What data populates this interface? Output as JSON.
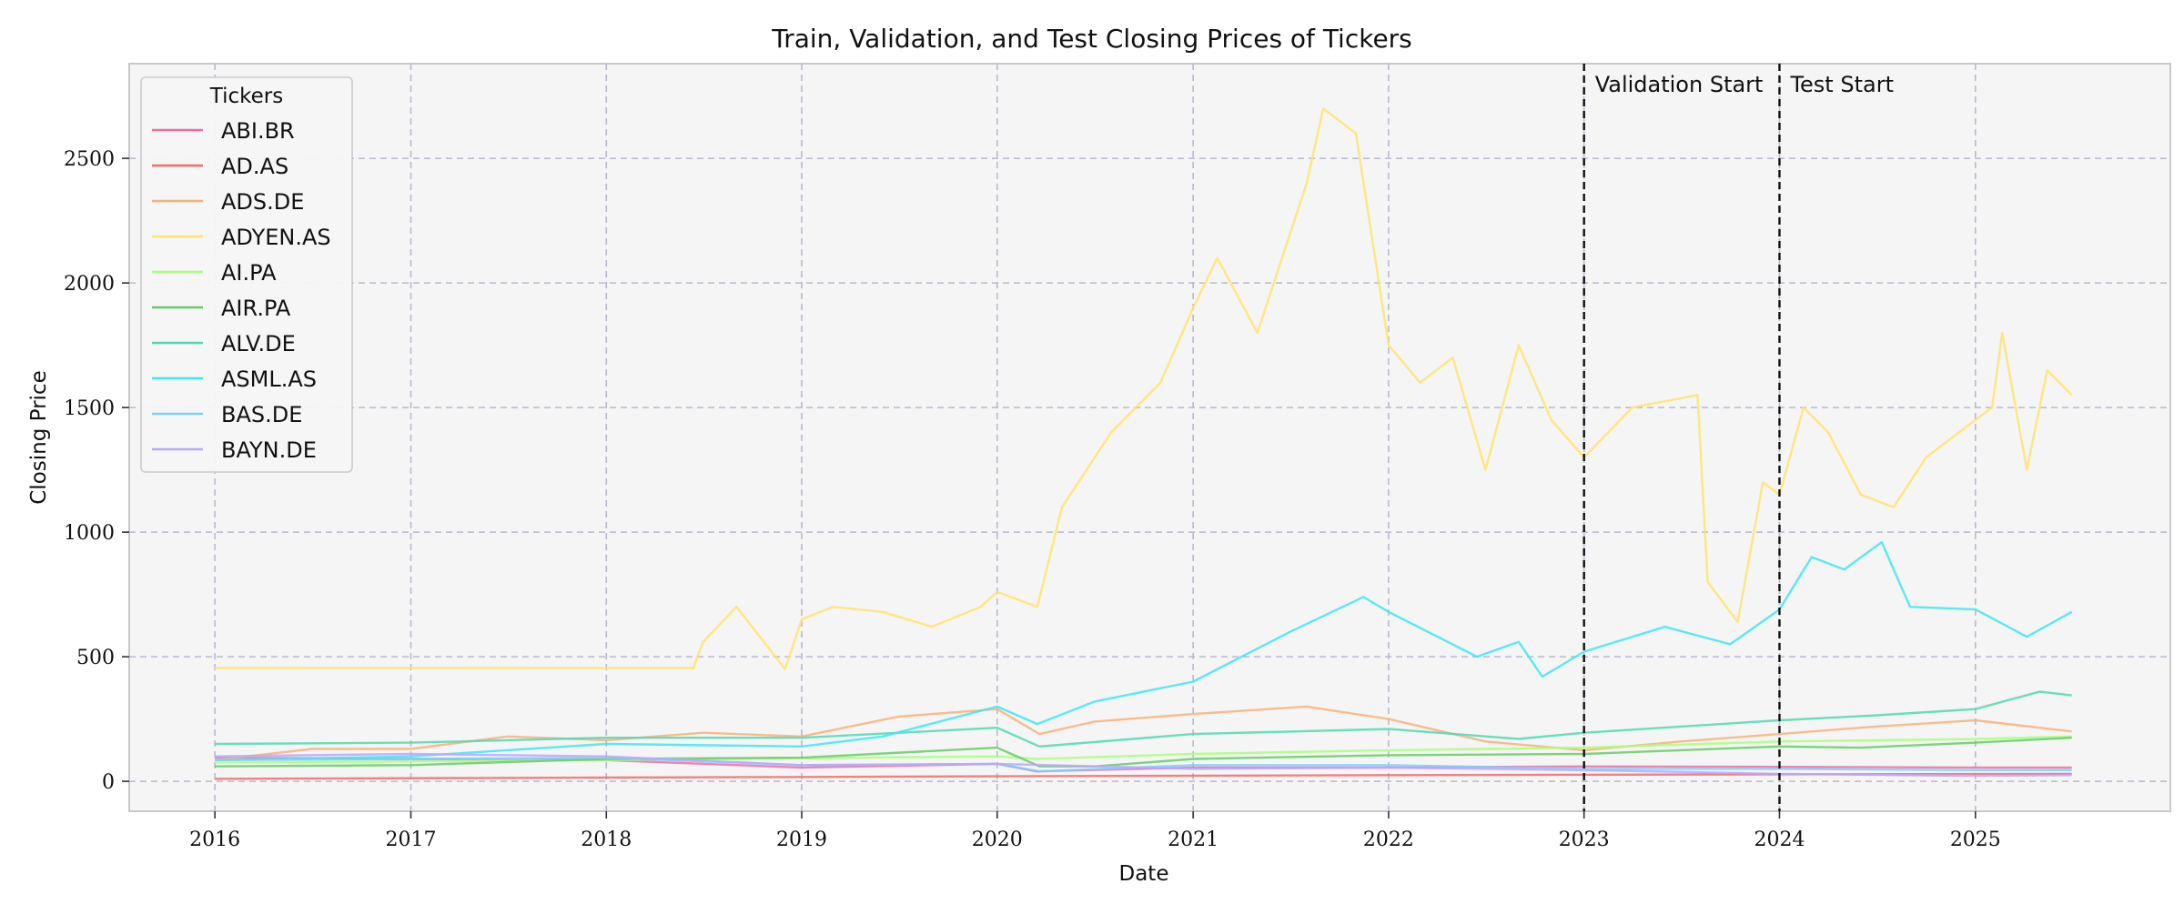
{
  "chart_data": {
    "type": "line",
    "title": "Train, Validation, and Test Closing Prices of Tickers",
    "xlabel": "Date",
    "ylabel": "Closing Price",
    "x_ticks": [
      "2016",
      "2017",
      "2018",
      "2019",
      "2020",
      "2021",
      "2022",
      "2023",
      "2024",
      "2025"
    ],
    "y_ticks": [
      "0",
      "500",
      "1000",
      "1500",
      "2000",
      "2500"
    ],
    "xlim": [
      "2015-07-25",
      "2025-12-31"
    ],
    "ylim": [
      -120,
      2880
    ],
    "grid": true,
    "legend": {
      "title": "Tickers",
      "placement": "top-left"
    },
    "vertical_markers": [
      {
        "label": "Validation Start",
        "date": "2023-01-01"
      },
      {
        "label": "Test Start",
        "date": "2024-01-01"
      }
    ],
    "series": [
      {
        "name": "ABI.BR",
        "color": "#f06fa3",
        "x": [
          "2016-01-01",
          "2017-01-01",
          "2018-01-01",
          "2019-01-01",
          "2020-01-01",
          "2020-03-15",
          "2021-01-01",
          "2022-01-01",
          "2023-01-01",
          "2024-01-01",
          "2025-01-01",
          "2025-06-30"
        ],
        "y": [
          95,
          90,
          85,
          55,
          70,
          40,
          55,
          55,
          60,
          58,
          55,
          55
        ]
      },
      {
        "name": "AD.AS",
        "color": "#f26b6b",
        "x": [
          "2016-01-01",
          "2018-01-01",
          "2020-01-01",
          "2022-01-01",
          "2024-01-01",
          "2025-06-30"
        ],
        "y": [
          10,
          15,
          20,
          25,
          28,
          30
        ]
      },
      {
        "name": "ADS.DE",
        "color": "#f9b07a",
        "x": [
          "2016-01-01",
          "2016-07-01",
          "2017-01-01",
          "2017-07-01",
          "2018-01-01",
          "2018-07-01",
          "2019-01-01",
          "2019-07-01",
          "2020-01-01",
          "2020-03-20",
          "2020-07-01",
          "2021-01-01",
          "2021-08-01",
          "2022-01-01",
          "2022-07-01",
          "2023-01-01",
          "2023-07-01",
          "2024-01-01",
          "2024-07-01",
          "2025-01-01",
          "2025-06-30"
        ],
        "y": [
          85,
          130,
          130,
          180,
          165,
          195,
          180,
          260,
          290,
          190,
          240,
          270,
          300,
          250,
          160,
          125,
          160,
          190,
          220,
          245,
          200
        ]
      },
      {
        "name": "ADYEN.AS",
        "color": "#ffe36b",
        "x": [
          "2016-01-01",
          "2018-06-13",
          "2018-06-20",
          "2018-07-01",
          "2018-09-01",
          "2018-10-15",
          "2018-12-01",
          "2019-01-01",
          "2019-03-01",
          "2019-06-01",
          "2019-09-01",
          "2019-12-01",
          "2020-01-01",
          "2020-03-16",
          "2020-05-01",
          "2020-08-01",
          "2020-11-01",
          "2021-01-01",
          "2021-02-15",
          "2021-05-01",
          "2021-08-01",
          "2021-09-01",
          "2021-11-01",
          "2022-01-01",
          "2022-03-01",
          "2022-05-01",
          "2022-07-01",
          "2022-09-01",
          "2022-11-01",
          "2023-01-01",
          "2023-04-01",
          "2023-08-01",
          "2023-08-20",
          "2023-10-15",
          "2023-12-01",
          "2024-01-01",
          "2024-02-15",
          "2024-04-01",
          "2024-06-01",
          "2024-08-01",
          "2024-10-01",
          "2024-12-01",
          "2025-02-01",
          "2025-02-20",
          "2025-04-07",
          "2025-05-15",
          "2025-06-30"
        ],
        "y": [
          455,
          455,
          500,
          560,
          700,
          580,
          450,
          650,
          700,
          680,
          620,
          700,
          760,
          700,
          1100,
          1400,
          1600,
          1900,
          2100,
          1800,
          2400,
          2700,
          2600,
          1750,
          1600,
          1700,
          1250,
          1750,
          1450,
          1300,
          1500,
          1550,
          800,
          640,
          1200,
          1150,
          1500,
          1400,
          1150,
          1100,
          1300,
          1400,
          1500,
          1800,
          1250,
          1650,
          1550
        ]
      },
      {
        "name": "AI.PA",
        "color": "#a8ff7a",
        "x": [
          "2016-01-01",
          "2018-01-01",
          "2020-01-01",
          "2020-03-16",
          "2021-01-01",
          "2022-01-01",
          "2023-01-01",
          "2024-01-01",
          "2025-01-01",
          "2025-06-30"
        ],
        "y": [
          75,
          85,
          100,
          90,
          110,
          125,
          135,
          160,
          170,
          180
        ]
      },
      {
        "name": "AIR.PA",
        "color": "#66cc66",
        "x": [
          "2016-01-01",
          "2017-01-01",
          "2018-01-01",
          "2019-01-01",
          "2020-01-01",
          "2020-03-20",
          "2020-07-01",
          "2021-01-01",
          "2022-01-01",
          "2023-01-01",
          "2024-01-01",
          "2024-06-01",
          "2025-01-01",
          "2025-06-30"
        ],
        "y": [
          60,
          65,
          90,
          95,
          135,
          60,
          60,
          90,
          105,
          110,
          140,
          135,
          155,
          175
        ]
      },
      {
        "name": "ALV.DE",
        "color": "#4fd9b3",
        "x": [
          "2016-01-01",
          "2017-01-01",
          "2018-01-01",
          "2019-01-01",
          "2020-01-01",
          "2020-03-20",
          "2021-01-01",
          "2022-01-01",
          "2022-09-01",
          "2023-01-01",
          "2024-01-01",
          "2024-07-01",
          "2025-01-01",
          "2025-05-01",
          "2025-06-30"
        ],
        "y": [
          150,
          155,
          175,
          175,
          215,
          140,
          190,
          210,
          170,
          195,
          245,
          265,
          290,
          360,
          345
        ]
      },
      {
        "name": "ASML.AS",
        "color": "#3de6f2",
        "x": [
          "2016-01-01",
          "2017-01-01",
          "2018-01-01",
          "2019-01-01",
          "2019-06-01",
          "2020-01-01",
          "2020-03-16",
          "2020-07-01",
          "2021-01-01",
          "2021-07-01",
          "2021-11-15",
          "2022-01-01",
          "2022-06-15",
          "2022-09-01",
          "2022-10-15",
          "2023-01-01",
          "2023-06-01",
          "2023-10-01",
          "2024-01-01",
          "2024-03-01",
          "2024-05-01",
          "2024-07-10",
          "2024-09-01",
          "2025-01-01",
          "2025-04-07",
          "2025-06-30"
        ],
        "y": [
          85,
          100,
          150,
          140,
          180,
          300,
          230,
          320,
          400,
          600,
          740,
          680,
          500,
          560,
          420,
          520,
          620,
          550,
          690,
          900,
          850,
          960,
          700,
          690,
          580,
          680
        ]
      },
      {
        "name": "BAS.DE",
        "color": "#7ad0ff",
        "x": [
          "2016-01-01",
          "2017-01-01",
          "2018-01-01",
          "2019-01-01",
          "2020-01-01",
          "2020-03-20",
          "2021-01-01",
          "2022-01-01",
          "2023-01-01",
          "2024-01-01",
          "2025-01-01",
          "2025-06-30"
        ],
        "y": [
          85,
          90,
          95,
          65,
          70,
          40,
          65,
          65,
          50,
          50,
          45,
          45
        ]
      },
      {
        "name": "BAYN.DE",
        "color": "#b8a8ff",
        "x": [
          "2016-01-01",
          "2017-01-01",
          "2018-01-01",
          "2019-01-01",
          "2020-01-01",
          "2021-01-01",
          "2022-01-01",
          "2023-01-01",
          "2024-01-01",
          "2025-01-01",
          "2025-06-30"
        ],
        "y": [
          100,
          110,
          100,
          65,
          70,
          50,
          55,
          45,
          30,
          22,
          25
        ]
      }
    ]
  }
}
